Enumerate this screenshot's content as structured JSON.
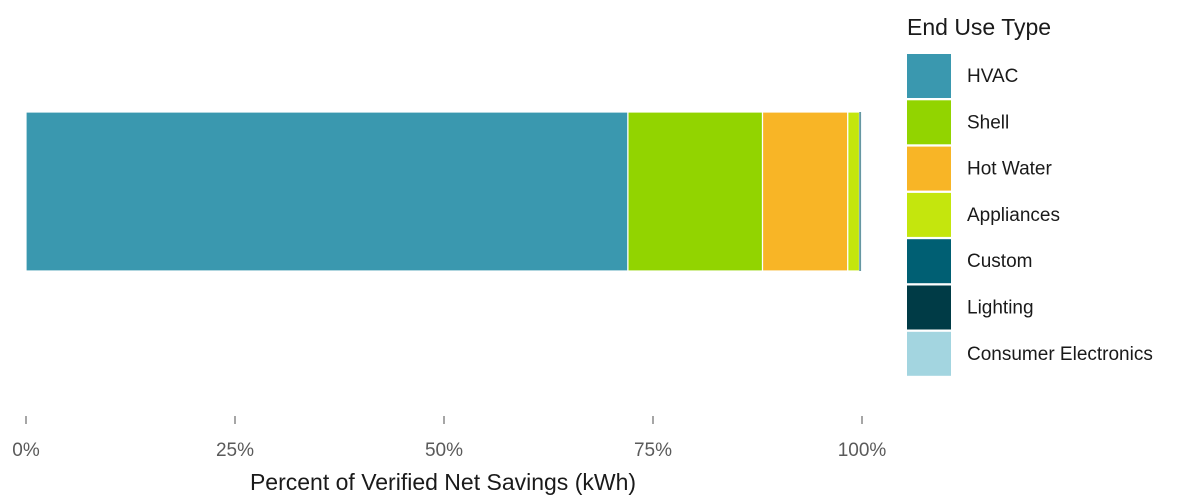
{
  "chart_data": {
    "type": "bar",
    "orientation": "horizontal",
    "stacked": true,
    "categories": [
      ""
    ],
    "series": [
      {
        "name": "HVAC",
        "color": "#3A98AF",
        "values": [
          72.0
        ]
      },
      {
        "name": "Shell",
        "color": "#92D400",
        "values": [
          16.1
        ]
      },
      {
        "name": "Hot Water",
        "color": "#F8B526",
        "values": [
          10.2
        ]
      },
      {
        "name": "Appliances",
        "color": "#C4E60D",
        "values": [
          1.4
        ]
      },
      {
        "name": "Custom",
        "color": "#005F73",
        "values": [
          0.1
        ]
      },
      {
        "name": "Lighting",
        "color": "#003B46",
        "values": [
          0.05
        ]
      },
      {
        "name": "Consumer Electronics",
        "color": "#A3D5E0",
        "values": [
          0.05
        ]
      }
    ],
    "xlabel": "Percent of Verified Net Savings (kWh)",
    "ylabel": "",
    "xlim": [
      0,
      100
    ],
    "xticks": [
      0,
      25,
      50,
      75,
      100
    ],
    "xtick_labels": [
      "0%",
      "25%",
      "50%",
      "75%",
      "100%"
    ],
    "legend_title": "End Use Type",
    "legend_position": "right",
    "grid": false
  }
}
